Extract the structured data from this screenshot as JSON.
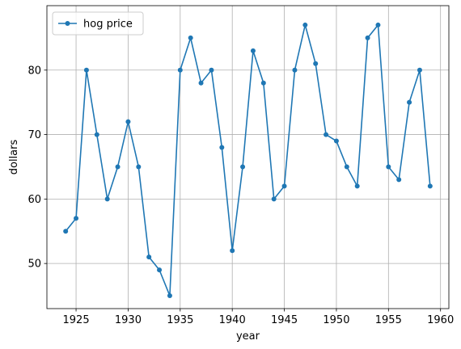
{
  "chart_data": {
    "type": "line",
    "title": "",
    "xlabel": "year",
    "ylabel": "dollars",
    "xlim": [
      1922.2,
      1960.8
    ],
    "ylim": [
      43,
      90
    ],
    "xticks": [
      1925,
      1930,
      1935,
      1940,
      1945,
      1950,
      1955,
      1960
    ],
    "yticks": [
      50,
      60,
      70,
      80
    ],
    "grid": true,
    "legend_position": "top-left",
    "series": [
      {
        "name": "hog price",
        "color": "#1f77b4",
        "marker": "circle",
        "x": [
          1924,
          1925,
          1926,
          1927,
          1928,
          1929,
          1930,
          1931,
          1932,
          1933,
          1934,
          1935,
          1936,
          1937,
          1938,
          1939,
          1940,
          1941,
          1942,
          1943,
          1944,
          1945,
          1946,
          1947,
          1948,
          1949,
          1950,
          1951,
          1952,
          1953,
          1954,
          1955,
          1956,
          1957,
          1958,
          1959
        ],
        "y": [
          55,
          57,
          80,
          70,
          60,
          65,
          72,
          65,
          51,
          49,
          45,
          80,
          85,
          78,
          80,
          68,
          52,
          65,
          83,
          78,
          60,
          62,
          80,
          87,
          81,
          70,
          69,
          65,
          62,
          85,
          87,
          65,
          63,
          75,
          80,
          62
        ]
      }
    ]
  }
}
